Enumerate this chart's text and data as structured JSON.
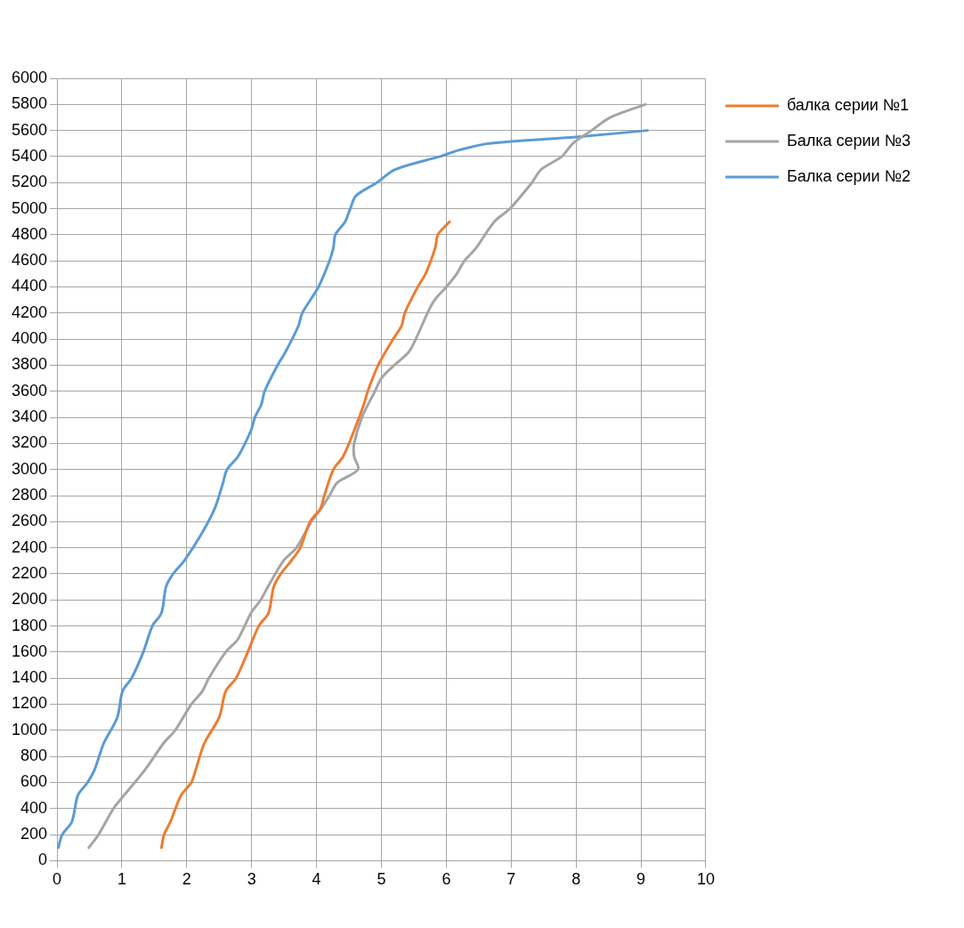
{
  "chart_data": {
    "type": "line",
    "xlim": [
      0,
      10
    ],
    "xticks": [
      0,
      1,
      2,
      3,
      4,
      5,
      6,
      7,
      8,
      9,
      10
    ],
    "ylim": [
      0,
      6000
    ],
    "yticks": [
      0,
      200,
      400,
      600,
      800,
      1000,
      1200,
      1400,
      1600,
      1800,
      2000,
      2200,
      2400,
      2600,
      2800,
      3000,
      3200,
      3400,
      3600,
      3800,
      4000,
      4200,
      4400,
      4600,
      4800,
      5000,
      5200,
      5400,
      5600,
      5800,
      6000
    ],
    "grid": true,
    "legend": "right",
    "marker": "none",
    "line_style": "solid",
    "series": [
      {
        "name": "балка серии №1",
        "color": "#ed7d31",
        "x": [
          1.61,
          1.65,
          1.75,
          1.91,
          2.07,
          2.14,
          2.27,
          2.5,
          2.6,
          2.76,
          2.94,
          3.11,
          3.26,
          3.34,
          3.45,
          3.61,
          3.75,
          3.9,
          4.06,
          4.12,
          4.26,
          4.41,
          4.58,
          4.73,
          4.79,
          4.95,
          5.18,
          5.31,
          5.36,
          5.56,
          5.68,
          5.83,
          5.87,
          6.05
        ],
        "values": [
          100,
          200,
          300,
          500,
          600,
          700,
          900,
          1100,
          1300,
          1400,
          1600,
          1800,
          1900,
          2100,
          2200,
          2300,
          2400,
          2600,
          2700,
          2800,
          3000,
          3100,
          3300,
          3500,
          3600,
          3800,
          4000,
          4100,
          4200,
          4400,
          4500,
          4700,
          4800,
          4900
        ]
      },
      {
        "name": "Балка серии №3",
        "color": "#a5a5a5",
        "x": [
          0.49,
          0.64,
          0.87,
          1.03,
          1.36,
          1.64,
          1.82,
          2.07,
          2.24,
          2.34,
          2.6,
          2.79,
          2.99,
          3.14,
          3.25,
          3.49,
          3.69,
          3.92,
          4.07,
          4.2,
          4.32,
          4.64,
          4.58,
          4.58,
          4.7,
          4.9,
          5.0,
          5.2,
          5.42,
          5.53,
          5.71,
          5.82,
          6.0,
          6.16,
          6.28,
          6.46,
          6.74,
          6.98,
          7.32,
          7.46,
          7.78,
          7.95,
          8.24,
          8.53,
          9.07
        ],
        "values": [
          100,
          200,
          400,
          500,
          700,
          900,
          1000,
          1200,
          1300,
          1400,
          1600,
          1700,
          1900,
          2000,
          2100,
          2300,
          2400,
          2600,
          2700,
          2800,
          2900,
          3000,
          3100,
          3200,
          3400,
          3600,
          3700,
          3800,
          3900,
          4000,
          4200,
          4300,
          4400,
          4500,
          4600,
          4700,
          4900,
          5000,
          5200,
          5300,
          5400,
          5500,
          5600,
          5700,
          5800
        ]
      },
      {
        "name": "Балка серии №2",
        "color": "#5b9bd5",
        "x": [
          0.02,
          0.08,
          0.23,
          0.32,
          0.47,
          0.58,
          0.72,
          0.93,
          1.01,
          1.15,
          1.33,
          1.47,
          1.61,
          1.68,
          1.79,
          1.96,
          2.22,
          2.43,
          2.56,
          2.62,
          2.79,
          2.99,
          3.05,
          3.15,
          3.2,
          3.4,
          3.52,
          3.72,
          3.78,
          4.03,
          4.2,
          4.26,
          4.29,
          4.44,
          4.52,
          4.61,
          4.93,
          5.21,
          5.9,
          6.2,
          6.66,
          8.0,
          9.1
        ],
        "values": [
          100,
          200,
          300,
          500,
          600,
          700,
          900,
          1100,
          1300,
          1400,
          1600,
          1800,
          1900,
          2100,
          2200,
          2300,
          2500,
          2700,
          2900,
          3000,
          3100,
          3300,
          3400,
          3500,
          3600,
          3800,
          3900,
          4100,
          4200,
          4400,
          4600,
          4700,
          4800,
          4900,
          5000,
          5100,
          5200,
          5300,
          5400,
          5450,
          5500,
          5550,
          5600
        ]
      }
    ]
  }
}
